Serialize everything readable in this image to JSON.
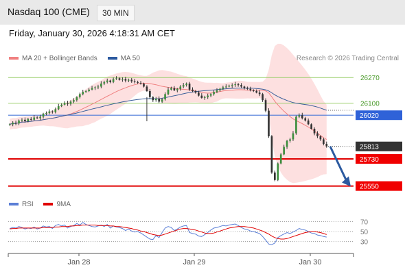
{
  "header": {
    "title": "Nasdaq 100 (CME)",
    "timeframe": "30 MIN"
  },
  "datetime": "Friday, January 30, 2026 4:18:31 AM CET",
  "legend": {
    "ma20_label": "MA 20 + Bollinger Bands",
    "ma50_label": "MA 50",
    "ma20_color": "#f08080",
    "ma50_color": "#2c5aa0"
  },
  "credit": "Research © 2026 Trading Central",
  "rsi_legend": {
    "rsi_label": "RSI",
    "ma_label": "9MA",
    "rsi_color": "#5b7fd6",
    "ma_color": "#e00000"
  },
  "chart_data": [
    {
      "type": "line",
      "title": "Nasdaq 100 (CME)",
      "x_ticks": [
        "Jan 28",
        "Jan 29",
        "Jan 30"
      ],
      "ylim": [
        25530,
        26330
      ],
      "levels": [
        {
          "value": 26270,
          "label": "26270",
          "style": "green-line"
        },
        {
          "value": 26100,
          "label": "26100",
          "style": "green-line"
        },
        {
          "value": 26020,
          "label": "26020",
          "style": "blue-tag"
        },
        {
          "value": 25813,
          "label": "25813",
          "style": "last-price-tag"
        },
        {
          "value": 25730,
          "label": "25730",
          "style": "red-tag"
        },
        {
          "value": 25550,
          "label": "25550",
          "style": "red-tag"
        }
      ],
      "close_series": [
        25960,
        25970,
        25965,
        25985,
        25990,
        25980,
        25995,
        25990,
        26005,
        26000,
        26010,
        26030,
        26035,
        26045,
        26040,
        26060,
        26080,
        26090,
        26100,
        26095,
        26110,
        26120,
        26140,
        26160,
        26175,
        26180,
        26190,
        26200,
        26205,
        26210,
        26230,
        26240,
        26250,
        26240,
        26260,
        26265,
        26255,
        26260,
        26250,
        26255,
        26245,
        26240,
        26235,
        26230,
        26210,
        26180,
        26140,
        26120,
        26130,
        26110,
        26125,
        26160,
        26190,
        26200,
        26185,
        26195,
        26210,
        26220,
        26230,
        26190,
        26180,
        26170,
        26150,
        26135,
        26140,
        26150,
        26160,
        26175,
        26185,
        26195,
        26205,
        26210,
        26215,
        26220,
        26225,
        26220,
        26210,
        26200,
        26195,
        26185,
        26180,
        26170,
        26160,
        26120,
        26050,
        25880,
        25640,
        25590,
        25700,
        25760,
        25810,
        25850,
        25860,
        25900,
        26010,
        26020,
        26000,
        25985,
        25960,
        25930,
        25900,
        25880,
        25860,
        25830,
        25813
      ],
      "trend_arrow": {
        "from": 25813,
        "to": 25560
      }
    },
    {
      "type": "line",
      "title": "RSI",
      "ylim": [
        20,
        80
      ],
      "y_ticks": [
        "70",
        "50",
        "30"
      ],
      "series": [
        {
          "name": "RSI",
          "values": [
            56,
            58,
            57,
            60,
            58,
            55,
            57,
            56,
            59,
            55,
            57,
            61,
            59,
            60,
            56,
            62,
            64,
            61,
            63,
            57,
            60,
            62,
            66,
            63,
            68,
            64,
            62,
            60,
            59,
            61,
            63,
            60,
            64,
            57,
            61,
            59,
            58,
            56,
            52,
            55,
            51,
            49,
            50,
            47,
            43,
            39,
            35,
            34,
            42,
            38,
            48,
            57,
            60,
            58,
            52,
            55,
            59,
            61,
            62,
            48,
            46,
            45,
            41,
            40,
            44,
            48,
            53,
            57,
            58,
            60,
            62,
            61,
            63,
            64,
            65,
            62,
            58,
            55,
            54,
            51,
            50,
            48,
            46,
            40,
            33,
            25,
            24,
            27,
            38,
            42,
            45,
            48,
            46,
            49,
            52,
            56,
            54,
            53,
            50,
            47,
            46,
            43,
            42,
            40,
            39
          ]
        },
        {
          "name": "9MA",
          "values": [
            55,
            56,
            56,
            57,
            57,
            57,
            57,
            57,
            57,
            57,
            57,
            58,
            58,
            58,
            58,
            59,
            59,
            60,
            60,
            60,
            61,
            61,
            62,
            62,
            63,
            63,
            63,
            63,
            63,
            62,
            62,
            62,
            62,
            61,
            61,
            60,
            60,
            59,
            58,
            57,
            56,
            54,
            53,
            51,
            50,
            48,
            46,
            44,
            43,
            42,
            43,
            45,
            47,
            49,
            51,
            53,
            55,
            56,
            56,
            55,
            54,
            53,
            51,
            49,
            47,
            46,
            46,
            47,
            49,
            51,
            53,
            55,
            57,
            58,
            59,
            60,
            60,
            60,
            59,
            58,
            57,
            55,
            53,
            51,
            48,
            45,
            41,
            38,
            36,
            35,
            35,
            36,
            38,
            40,
            42,
            44,
            46,
            48,
            49,
            50,
            50,
            49,
            48,
            46,
            44
          ]
        }
      ]
    }
  ]
}
